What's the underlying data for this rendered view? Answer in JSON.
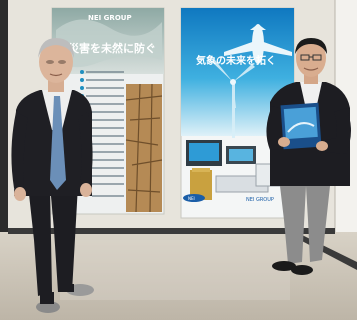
{
  "left_poster": {
    "brand": "NEI GROUP",
    "headline": "災害を未然に防ぐ"
  },
  "right_poster": {
    "headline": "気象の未来を拓く",
    "footer_brand": "NEI GROUP",
    "logo_text": "NEI"
  },
  "booklet": {
    "cover_text": ""
  },
  "colors": {
    "wall": "#e7e4dc",
    "floor": "#c9c2b5",
    "left_poster_bg": "#eef0f0",
    "right_poster_sky": "#1f8fd0",
    "right_poster_bottom": "#f4f6f6",
    "suit_dark": "#1d1d22",
    "trousers_grey": "#8c8c8c"
  }
}
